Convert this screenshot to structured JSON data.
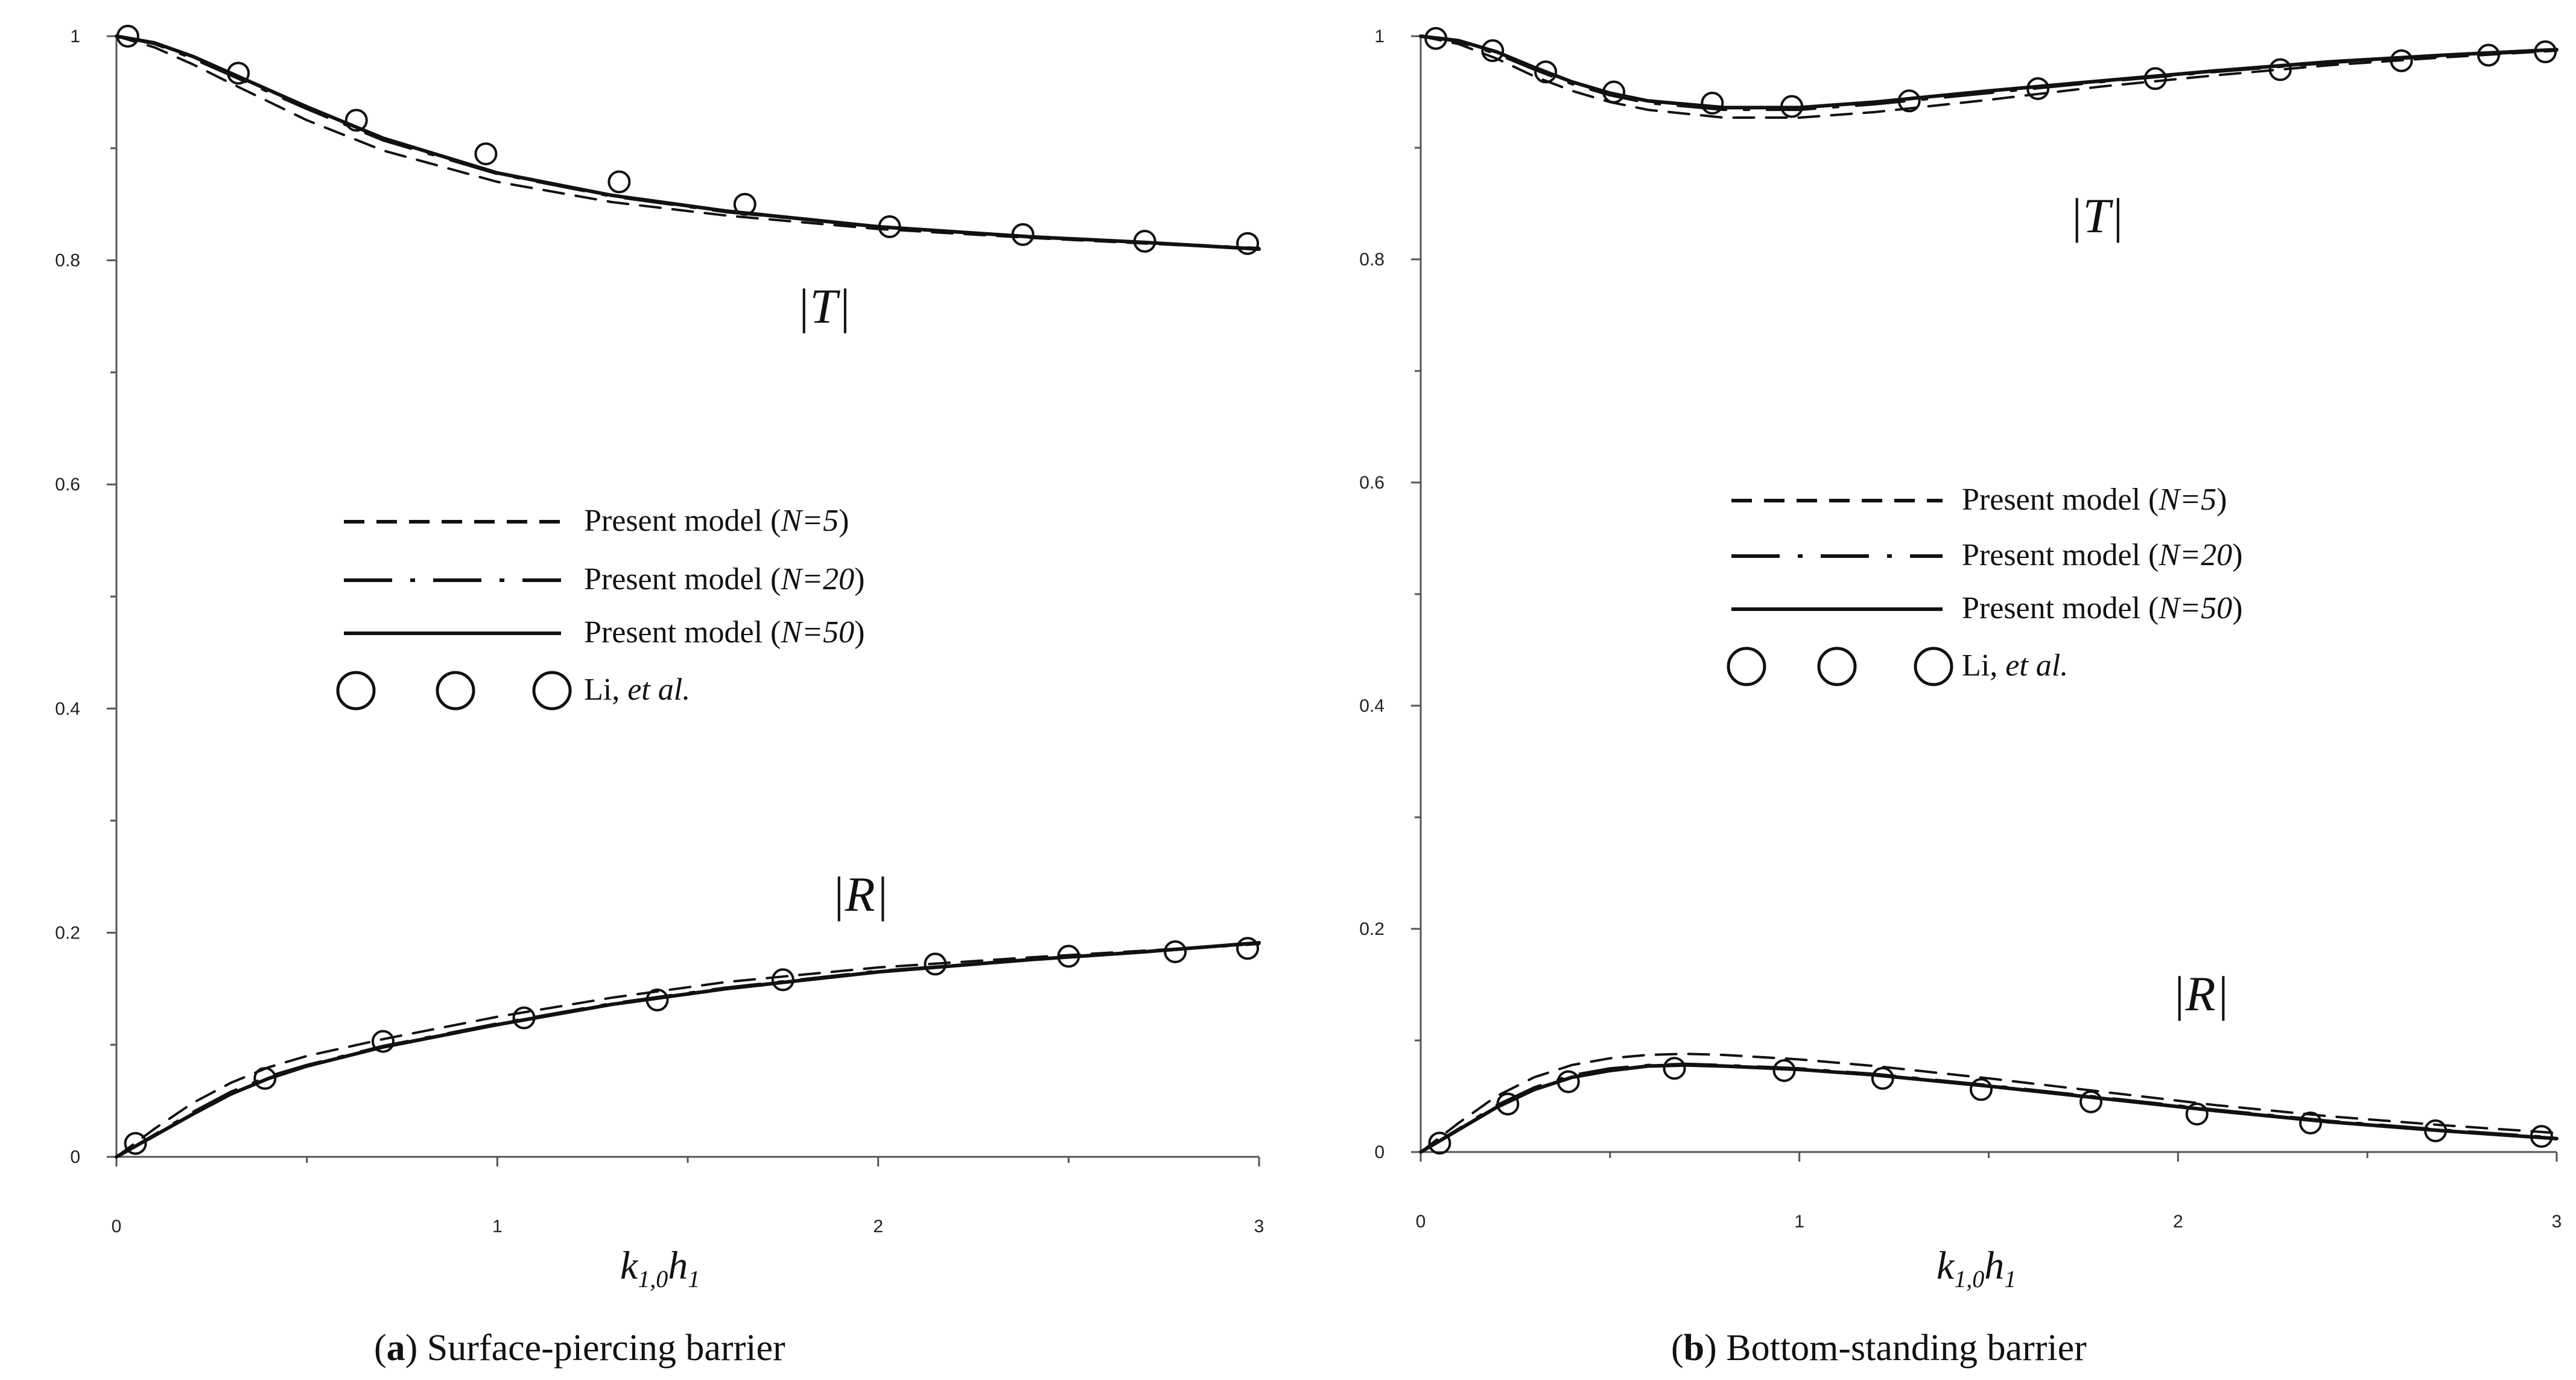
{
  "figure": {
    "panels": [
      {
        "caption_letter": "a",
        "caption_text": ") Surface-piercing barrier",
        "caption_open": "(",
        "xlabel_main": "k",
        "xlabel_sub1": "1,0",
        "xlabel_main2": "h",
        "xlabel_sub2": "1"
      },
      {
        "caption_letter": "b",
        "caption_text": ") Bottom-standing barrier",
        "caption_open": "(",
        "xlabel_main": "k",
        "xlabel_sub1": "1,0",
        "xlabel_main2": "h",
        "xlabel_sub2": "1"
      }
    ],
    "legend": {
      "prefix": "Present model (",
      "entries": [
        {
          "name": "N=5",
          "style": "dashed"
        },
        {
          "name": "N=20",
          "style": "dashdot"
        },
        {
          "name": "N=50",
          "style": "solid"
        }
      ],
      "suffix": ")",
      "markers_label_plain": "Li, ",
      "markers_label_italic": "et al."
    }
  },
  "chart_data": [
    {
      "type": "line",
      "title": "(a) Surface-piercing barrier",
      "xlabel": "k1,0h1",
      "ylabel": "",
      "xlim": [
        0,
        3
      ],
      "ylim": [
        0,
        1
      ],
      "xticks": [
        "0",
        "1",
        "2",
        "3"
      ],
      "yticks": [
        "0",
        "0.2",
        "0.4",
        "0.6",
        "0.8",
        "1"
      ],
      "annotations": [
        "|T|",
        "|R|"
      ],
      "series": [
        {
          "name": "|T| Present model (N=5)",
          "style": "dashed",
          "x": [
            0,
            0.1,
            0.2,
            0.3,
            0.5,
            0.7,
            1.0,
            1.3,
            1.6,
            2.0,
            2.4,
            2.7,
            3.0
          ],
          "y": [
            1.0,
            0.99,
            0.975,
            0.958,
            0.925,
            0.898,
            0.87,
            0.852,
            0.84,
            0.828,
            0.82,
            0.815,
            0.81
          ]
        },
        {
          "name": "|T| Present model (N=20)",
          "style": "dashdot",
          "x": [
            0,
            0.1,
            0.2,
            0.3,
            0.5,
            0.7,
            1.0,
            1.3,
            1.6,
            2.0,
            2.4,
            2.7,
            3.0
          ],
          "y": [
            1.0,
            0.993,
            0.98,
            0.965,
            0.935,
            0.907,
            0.877,
            0.857,
            0.843,
            0.83,
            0.821,
            0.816,
            0.811
          ]
        },
        {
          "name": "|T| Present model (N=50)",
          "style": "solid",
          "x": [
            0,
            0.1,
            0.2,
            0.3,
            0.5,
            0.7,
            1.0,
            1.3,
            1.6,
            2.0,
            2.4,
            2.7,
            3.0
          ],
          "y": [
            1.0,
            0.994,
            0.982,
            0.967,
            0.937,
            0.909,
            0.878,
            0.858,
            0.844,
            0.83,
            0.821,
            0.816,
            0.81
          ]
        },
        {
          "name": "|T| Li, et al.",
          "style": "markers",
          "x": [
            0.03,
            0.32,
            0.63,
            0.97,
            1.32,
            1.65,
            2.03,
            2.38,
            2.7,
            2.97
          ],
          "y": [
            1.0,
            0.967,
            0.925,
            0.895,
            0.87,
            0.85,
            0.83,
            0.823,
            0.817,
            0.815
          ]
        },
        {
          "name": "|R| Present model (N=5)",
          "style": "dashed",
          "x": [
            0,
            0.1,
            0.2,
            0.3,
            0.4,
            0.5,
            0.7,
            1.0,
            1.3,
            1.6,
            2.0,
            2.4,
            2.7,
            3.0
          ],
          "y": [
            0.0,
            0.025,
            0.048,
            0.066,
            0.08,
            0.09,
            0.105,
            0.125,
            0.142,
            0.156,
            0.169,
            0.178,
            0.184,
            0.19
          ]
        },
        {
          "name": "|R| Present model (N=20)",
          "style": "dashdot",
          "x": [
            0,
            0.1,
            0.2,
            0.3,
            0.4,
            0.5,
            0.7,
            1.0,
            1.3,
            1.6,
            2.0,
            2.4,
            2.7,
            3.0
          ],
          "y": [
            0.0,
            0.02,
            0.04,
            0.058,
            0.072,
            0.082,
            0.099,
            0.119,
            0.137,
            0.151,
            0.166,
            0.176,
            0.183,
            0.19
          ]
        },
        {
          "name": "|R| Present model (N=50)",
          "style": "solid",
          "x": [
            0,
            0.1,
            0.2,
            0.3,
            0.4,
            0.5,
            0.7,
            1.0,
            1.3,
            1.6,
            2.0,
            2.4,
            2.7,
            3.0
          ],
          "y": [
            0.0,
            0.019,
            0.038,
            0.056,
            0.07,
            0.081,
            0.098,
            0.118,
            0.136,
            0.15,
            0.165,
            0.176,
            0.183,
            0.191
          ]
        },
        {
          "name": "|R| Li, et al.",
          "style": "markers",
          "x": [
            0.05,
            0.39,
            0.7,
            1.07,
            1.42,
            1.75,
            2.15,
            2.5,
            2.78,
            2.97
          ],
          "y": [
            0.012,
            0.07,
            0.103,
            0.124,
            0.14,
            0.158,
            0.172,
            0.179,
            0.183,
            0.186
          ]
        }
      ]
    },
    {
      "type": "line",
      "title": "(b) Bottom-standing barrier",
      "xlabel": "k1,0h1",
      "ylabel": "",
      "xlim": [
        0,
        3
      ],
      "ylim": [
        0,
        1
      ],
      "xticks": [
        "0",
        "1",
        "2",
        "3"
      ],
      "yticks": [
        "0",
        "0.2",
        "0.4",
        "0.6",
        "0.8",
        "1"
      ],
      "annotations": [
        "|T|",
        "|R|"
      ],
      "series": [
        {
          "name": "|T| Present model (N=5)",
          "style": "dashed",
          "x": [
            0,
            0.1,
            0.2,
            0.3,
            0.4,
            0.5,
            0.6,
            0.8,
            1.0,
            1.2,
            1.5,
            1.8,
            2.1,
            2.4,
            2.7,
            3.0
          ],
          "y": [
            1.0,
            0.993,
            0.98,
            0.964,
            0.951,
            0.941,
            0.934,
            0.927,
            0.927,
            0.932,
            0.943,
            0.955,
            0.965,
            0.974,
            0.981,
            0.987
          ]
        },
        {
          "name": "|T| Present model (N=20)",
          "style": "dashdot",
          "x": [
            0,
            0.1,
            0.2,
            0.3,
            0.4,
            0.5,
            0.6,
            0.8,
            1.0,
            1.2,
            1.5,
            1.8,
            2.1,
            2.4,
            2.7,
            3.0
          ],
          "y": [
            1.0,
            0.995,
            0.984,
            0.97,
            0.957,
            0.947,
            0.94,
            0.934,
            0.934,
            0.939,
            0.949,
            0.959,
            0.968,
            0.976,
            0.982,
            0.987
          ]
        },
        {
          "name": "|T| Present model (N=50)",
          "style": "solid",
          "x": [
            0,
            0.1,
            0.2,
            0.3,
            0.4,
            0.5,
            0.6,
            0.8,
            1.0,
            1.2,
            1.5,
            1.8,
            2.1,
            2.4,
            2.7,
            3.0
          ],
          "y": [
            1.0,
            0.996,
            0.986,
            0.972,
            0.959,
            0.949,
            0.942,
            0.936,
            0.936,
            0.941,
            0.951,
            0.96,
            0.969,
            0.977,
            0.983,
            0.988
          ]
        },
        {
          "name": "|T| Li, et al.",
          "style": "markers",
          "x": [
            0.04,
            0.19,
            0.33,
            0.51,
            0.77,
            0.98,
            1.29,
            1.63,
            1.94,
            2.27,
            2.59,
            2.82,
            2.97
          ],
          "y": [
            0.998,
            0.987,
            0.968,
            0.95,
            0.94,
            0.937,
            0.942,
            0.953,
            0.962,
            0.97,
            0.978,
            0.983,
            0.986
          ]
        },
        {
          "name": "|R| Present model (N=5)",
          "style": "dashed",
          "x": [
            0,
            0.1,
            0.2,
            0.3,
            0.4,
            0.5,
            0.6,
            0.7,
            0.8,
            1.0,
            1.2,
            1.5,
            1.8,
            2.1,
            2.4,
            2.7,
            3.0
          ],
          "y": [
            0.0,
            0.026,
            0.05,
            0.067,
            0.078,
            0.084,
            0.087,
            0.088,
            0.087,
            0.083,
            0.077,
            0.066,
            0.054,
            0.042,
            0.032,
            0.024,
            0.017
          ]
        },
        {
          "name": "|R| Present model (N=20)",
          "style": "dashdot",
          "x": [
            0,
            0.1,
            0.2,
            0.3,
            0.4,
            0.5,
            0.6,
            0.7,
            0.8,
            1.0,
            1.2,
            1.5,
            1.8,
            2.1,
            2.4,
            2.7,
            3.0
          ],
          "y": [
            0.0,
            0.021,
            0.042,
            0.058,
            0.069,
            0.075,
            0.078,
            0.079,
            0.078,
            0.075,
            0.07,
            0.06,
            0.049,
            0.038,
            0.028,
            0.02,
            0.013
          ]
        },
        {
          "name": "|R| Present model (N=50)",
          "style": "solid",
          "x": [
            0,
            0.1,
            0.2,
            0.3,
            0.4,
            0.5,
            0.6,
            0.7,
            0.8,
            1.0,
            1.2,
            1.5,
            1.8,
            2.1,
            2.4,
            2.7,
            3.0
          ],
          "y": [
            0.0,
            0.02,
            0.04,
            0.056,
            0.067,
            0.073,
            0.077,
            0.078,
            0.077,
            0.074,
            0.069,
            0.059,
            0.048,
            0.037,
            0.027,
            0.019,
            0.012
          ]
        },
        {
          "name": "|R| Li, et al.",
          "style": "markers",
          "x": [
            0.05,
            0.23,
            0.39,
            0.67,
            0.96,
            1.22,
            1.48,
            1.77,
            2.05,
            2.35,
            2.68,
            2.96
          ],
          "y": [
            0.008,
            0.043,
            0.063,
            0.075,
            0.073,
            0.066,
            0.056,
            0.045,
            0.034,
            0.026,
            0.019,
            0.014
          ]
        }
      ]
    }
  ]
}
